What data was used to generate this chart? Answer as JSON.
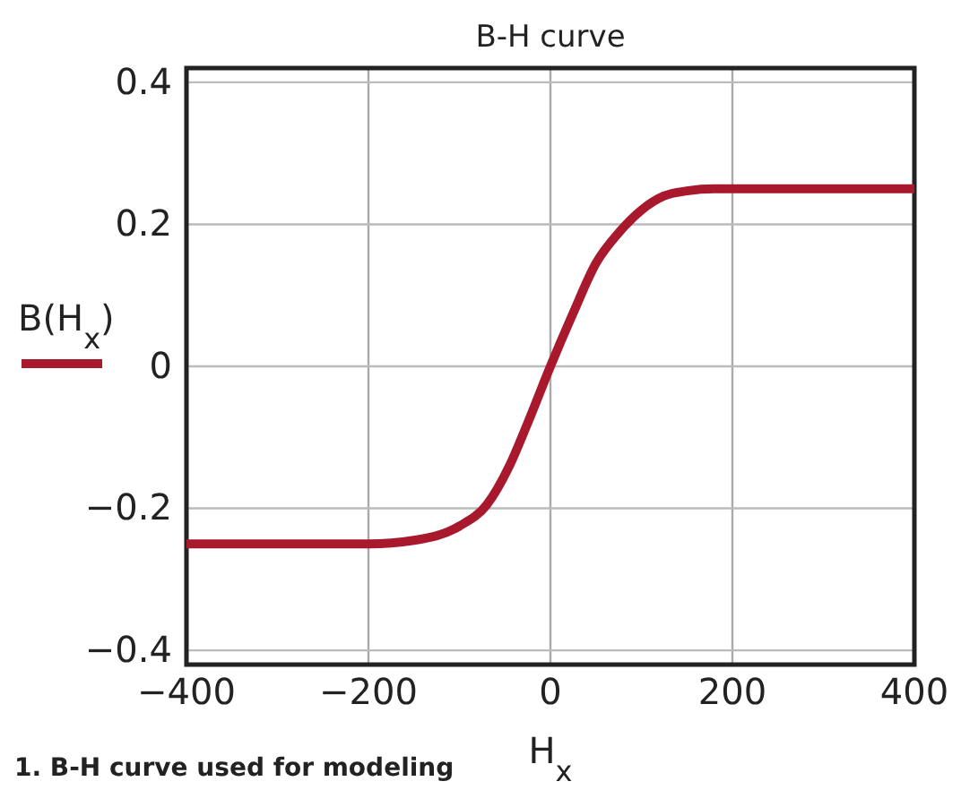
{
  "chart_data": {
    "type": "line",
    "title": "B-H curve",
    "xlabel": "H$_{x}$",
    "x": [
      -400,
      -200,
      -150,
      -100,
      -70,
      -45,
      -25,
      0,
      25,
      50,
      75,
      100,
      125,
      150,
      180,
      400
    ],
    "series": [
      {
        "name": "B(H$_{x}$)",
        "color": "#a8192e",
        "values": [
          -0.25,
          -0.25,
          -0.245,
          -0.225,
          -0.195,
          -0.14,
          -0.08,
          0,
          0.075,
          0.145,
          0.188,
          0.22,
          0.24,
          0.247,
          0.25,
          0.25
        ]
      }
    ],
    "xlim": [
      -400,
      400
    ],
    "ylim": [
      -0.42,
      0.42
    ],
    "xticks": [
      {
        "value": -400,
        "label": "−400"
      },
      {
        "value": -200,
        "label": "−200"
      },
      0,
      200,
      400
    ],
    "yticks": [
      {
        "value": -0.4,
        "label": "−0.4"
      },
      {
        "value": -0.2,
        "label": "−0.2"
      },
      0,
      0.2,
      0.4
    ],
    "grid": true,
    "legend": "left",
    "line_style": "solid",
    "marker": "none",
    "annotations": [
      "1. B-H curve used for modeling"
    ]
  }
}
